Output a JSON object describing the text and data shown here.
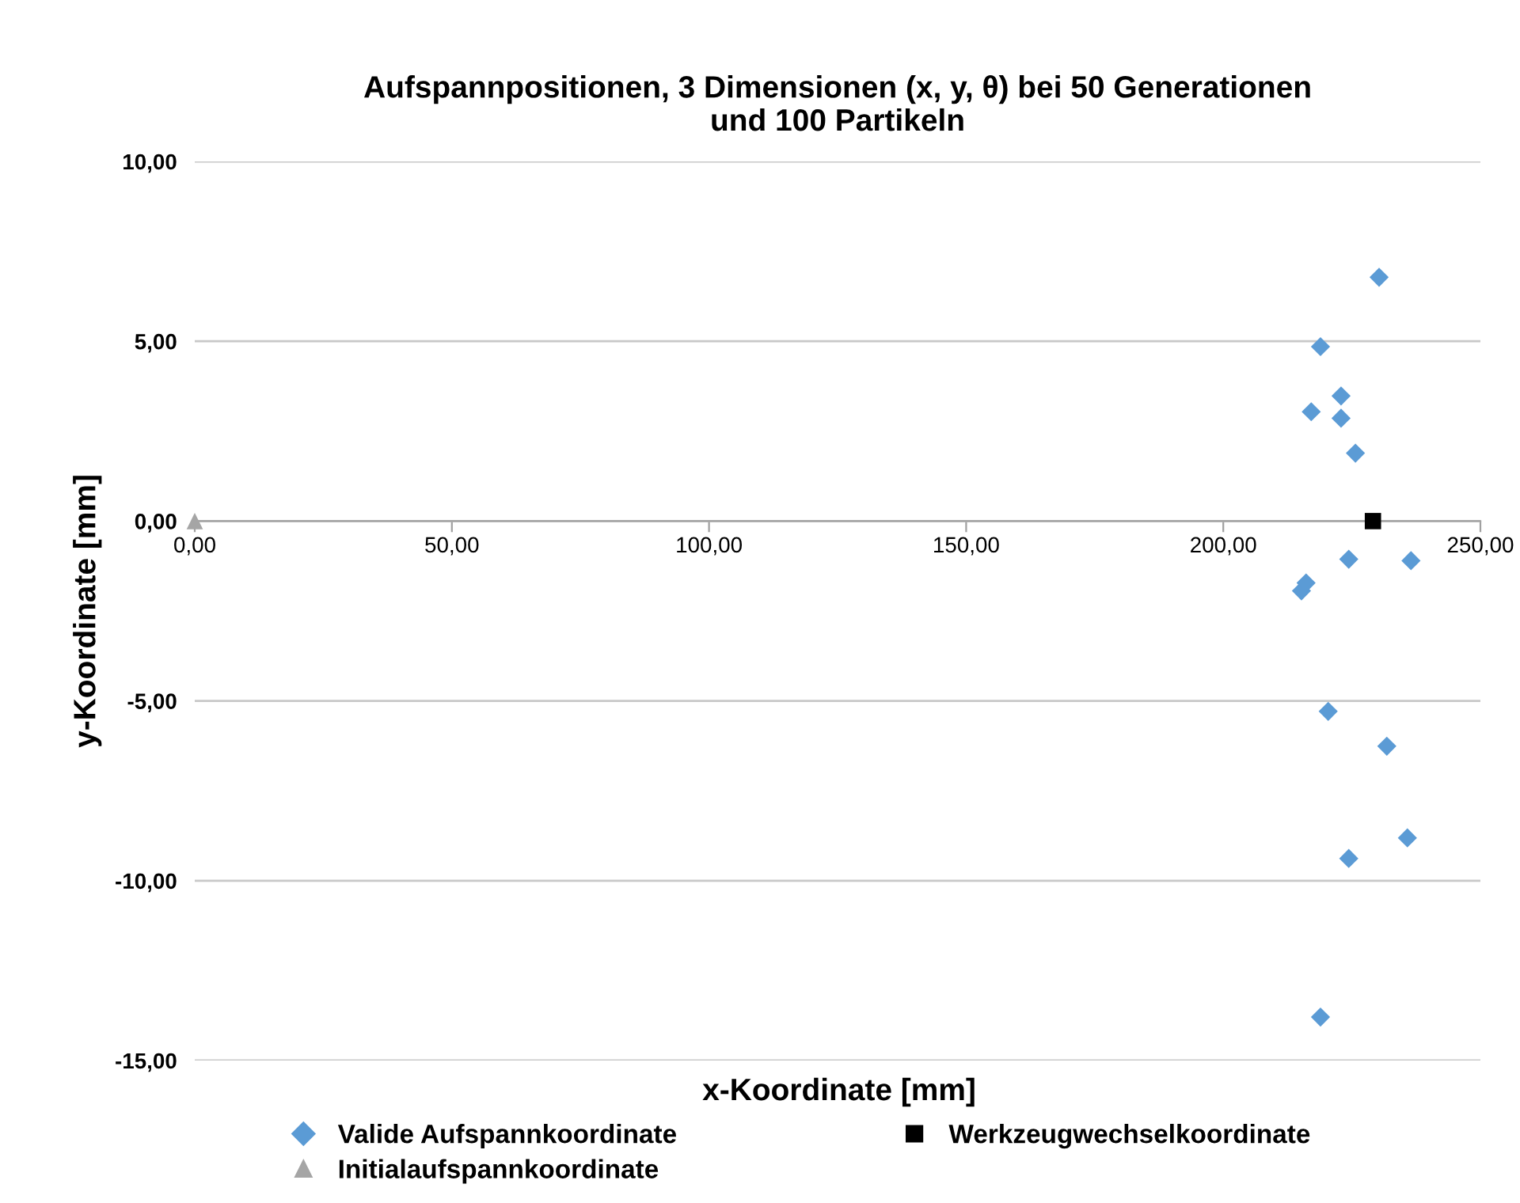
{
  "chart_data": {
    "type": "scatter",
    "title": "Aufspannpositionen, 3 Dimensionen (x, y, θ) bei 50 Generationen\nund 100 Partikeln",
    "xlabel": "x-Koordinate [mm]",
    "ylabel": "y-Koordinate [mm]",
    "xlim": [
      0,
      250
    ],
    "ylim": [
      -15,
      10
    ],
    "xticks": [
      {
        "value": 0,
        "label": "0,00"
      },
      {
        "value": 50,
        "label": "50,00"
      },
      {
        "value": 100,
        "label": "100,00"
      },
      {
        "value": 150,
        "label": "150,00"
      },
      {
        "value": 200,
        "label": "200,00"
      },
      {
        "value": 250,
        "label": "250,00"
      }
    ],
    "yticks": [
      {
        "value": -15,
        "label": "-15,00"
      },
      {
        "value": -10,
        "label": "-10,00"
      },
      {
        "value": -5,
        "label": "-5,00"
      },
      {
        "value": 0,
        "label": "0,00"
      },
      {
        "value": 5,
        "label": "5,00"
      },
      {
        "value": 10,
        "label": "10,00"
      }
    ],
    "grid": "y",
    "legend": "bottom",
    "series": [
      {
        "name": "Valide Aufspannkoordinate",
        "color": "#5b9bd5",
        "marker": "diamond",
        "x": [
          230.3,
          218.9,
          222.9,
          217.1,
          222.9,
          225.7,
          224.4,
          236.5,
          215.2,
          216.1,
          220.4,
          231.8,
          235.8,
          224.4,
          218.9
        ],
        "values": [
          6.78,
          4.85,
          3.48,
          3.04,
          2.86,
          1.89,
          -1.06,
          -1.1,
          -1.94,
          -1.72,
          -5.29,
          -6.26,
          -8.81,
          -9.38,
          -13.79
        ]
      },
      {
        "name": "Initialaufspannkoordinate",
        "color": "#a5a5a5",
        "marker": "triangle",
        "x": [
          0
        ],
        "values": [
          0
        ]
      },
      {
        "name": "Werkzeugwechselkoordinate",
        "color": "#000000",
        "marker": "square",
        "x": [
          229.1
        ],
        "values": [
          0
        ]
      }
    ]
  }
}
